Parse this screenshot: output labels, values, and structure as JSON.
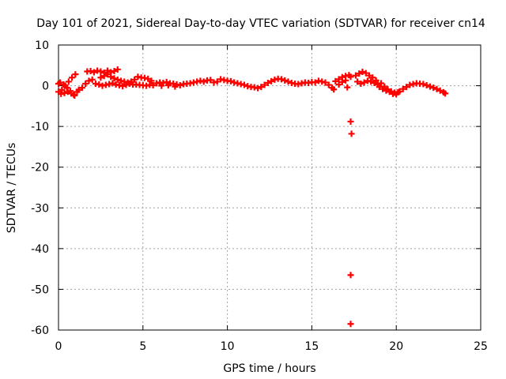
{
  "chart_data": {
    "type": "scatter",
    "title": "Day 101 of 2021, Sidereal Day-to-day VTEC variation (SDTVAR) for receiver cn14",
    "xlabel": "GPS time / hours",
    "ylabel": "SDTVAR / TECUs",
    "xlim": [
      0,
      25
    ],
    "ylim": [
      -60,
      10
    ],
    "xticks": [
      0,
      5,
      10,
      15,
      20,
      25
    ],
    "yticks": [
      10,
      0,
      -10,
      -20,
      -30,
      -40,
      -50,
      -60
    ],
    "grid": true,
    "marker": "+",
    "color": "#ff0000",
    "series": [
      {
        "name": "SDTVAR",
        "points": [
          [
            0.0,
            -1.5
          ],
          [
            0.2,
            -1.0
          ],
          [
            0.4,
            0.0
          ],
          [
            0.6,
            1.0
          ],
          [
            0.8,
            2.0
          ],
          [
            1.0,
            2.8
          ],
          [
            0.1,
            0.8
          ],
          [
            0.3,
            0.3
          ],
          [
            0.5,
            -0.5
          ],
          [
            0.7,
            -1.3
          ],
          [
            0.9,
            -2.2
          ],
          [
            1.1,
            -1.5
          ],
          [
            0.0,
            0.5
          ],
          [
            0.15,
            -2.0
          ],
          [
            0.35,
            -1.8
          ],
          [
            0.55,
            -1.5
          ],
          [
            0.75,
            -1.9
          ],
          [
            0.95,
            -2.4
          ],
          [
            1.2,
            -1.0
          ],
          [
            1.4,
            -0.5
          ],
          [
            1.6,
            0.5
          ],
          [
            1.8,
            1.2
          ],
          [
            2.0,
            1.5
          ],
          [
            1.7,
            3.5
          ],
          [
            1.9,
            3.6
          ],
          [
            2.1,
            3.3
          ],
          [
            2.3,
            3.7
          ],
          [
            2.5,
            3.5
          ],
          [
            2.7,
            3.2
          ],
          [
            2.9,
            3.7
          ],
          [
            3.1,
            3.3
          ],
          [
            3.3,
            3.6
          ],
          [
            3.5,
            4.0
          ],
          [
            2.2,
            0.5
          ],
          [
            2.4,
            0.3
          ],
          [
            2.6,
            0.0
          ],
          [
            2.8,
            0.2
          ],
          [
            3.0,
            0.4
          ],
          [
            3.2,
            0.6
          ],
          [
            2.5,
            2.0
          ],
          [
            2.7,
            2.4
          ],
          [
            2.9,
            2.8
          ],
          [
            3.1,
            2.2
          ],
          [
            3.3,
            1.8
          ],
          [
            3.5,
            1.5
          ],
          [
            3.7,
            1.2
          ],
          [
            3.9,
            1.0
          ],
          [
            3.4,
            0.3
          ],
          [
            3.6,
            0.1
          ],
          [
            3.8,
            -0.1
          ],
          [
            4.0,
            0.2
          ],
          [
            4.2,
            0.5
          ],
          [
            4.4,
            0.3
          ],
          [
            4.1,
            0.8
          ],
          [
            4.3,
            1.0
          ],
          [
            4.5,
            1.5
          ],
          [
            4.7,
            2.2
          ],
          [
            4.9,
            2.0
          ],
          [
            5.1,
            1.9
          ],
          [
            5.3,
            1.7
          ],
          [
            5.5,
            1.2
          ],
          [
            4.6,
            0.3
          ],
          [
            4.8,
            0.2
          ],
          [
            5.0,
            0.1
          ],
          [
            5.2,
            0.0
          ],
          [
            5.4,
            0.2
          ],
          [
            5.6,
            0.1
          ],
          [
            5.8,
            0.6
          ],
          [
            6.0,
            0.8
          ],
          [
            6.2,
            0.7
          ],
          [
            6.4,
            0.9
          ],
          [
            6.6,
            0.6
          ],
          [
            6.8,
            0.5
          ],
          [
            7.0,
            0.3
          ],
          [
            6.1,
            0.0
          ],
          [
            6.5,
            0.1
          ],
          [
            6.9,
            -0.2
          ],
          [
            7.2,
            0.1
          ],
          [
            7.4,
            0.4
          ],
          [
            7.6,
            0.5
          ],
          [
            7.8,
            0.6
          ],
          [
            8.0,
            0.8
          ],
          [
            8.2,
            1.0
          ],
          [
            8.4,
            1.2
          ],
          [
            8.6,
            1.0
          ],
          [
            8.8,
            1.3
          ],
          [
            9.0,
            1.4
          ],
          [
            9.2,
            0.8
          ],
          [
            9.4,
            1.0
          ],
          [
            9.6,
            1.6
          ],
          [
            9.8,
            1.4
          ],
          [
            10.0,
            1.2
          ],
          [
            10.2,
            1.1
          ],
          [
            10.4,
            0.8
          ],
          [
            10.6,
            0.6
          ],
          [
            10.8,
            0.4
          ],
          [
            11.0,
            0.2
          ],
          [
            11.2,
            -0.1
          ],
          [
            11.4,
            -0.3
          ],
          [
            11.6,
            -0.4
          ],
          [
            11.8,
            -0.6
          ],
          [
            12.0,
            -0.3
          ],
          [
            12.2,
            0.2
          ],
          [
            12.4,
            0.7
          ],
          [
            12.6,
            1.1
          ],
          [
            12.8,
            1.5
          ],
          [
            13.0,
            1.7
          ],
          [
            13.2,
            1.6
          ],
          [
            13.4,
            1.3
          ],
          [
            13.6,
            1.0
          ],
          [
            13.8,
            0.7
          ],
          [
            14.0,
            0.5
          ],
          [
            14.2,
            0.4
          ],
          [
            14.4,
            0.6
          ],
          [
            14.6,
            0.8
          ],
          [
            14.8,
            0.7
          ],
          [
            15.0,
            0.9
          ],
          [
            15.2,
            0.8
          ],
          [
            15.4,
            1.2
          ],
          [
            15.6,
            1.0
          ],
          [
            15.8,
            0.8
          ],
          [
            16.0,
            0.2
          ],
          [
            16.2,
            -0.5
          ],
          [
            16.3,
            -0.9
          ],
          [
            16.4,
            1.1
          ],
          [
            16.6,
            1.6
          ],
          [
            16.8,
            2.1
          ],
          [
            17.0,
            2.4
          ],
          [
            17.2,
            2.6
          ],
          [
            17.3,
            2.2
          ],
          [
            16.6,
            0.3
          ],
          [
            16.8,
            0.9
          ],
          [
            17.0,
            1.3
          ],
          [
            17.1,
            -0.4
          ],
          [
            17.3,
            -8.8
          ],
          [
            17.35,
            -11.8
          ],
          [
            17.3,
            -46.5
          ],
          [
            17.3,
            -58.5
          ],
          [
            17.6,
            2.5
          ],
          [
            17.8,
            3.0
          ],
          [
            18.0,
            3.4
          ],
          [
            18.2,
            3.1
          ],
          [
            18.4,
            2.5
          ],
          [
            18.6,
            2.0
          ],
          [
            18.8,
            1.3
          ],
          [
            17.7,
            1.0
          ],
          [
            17.9,
            0.5
          ],
          [
            18.1,
            0.8
          ],
          [
            18.3,
            1.2
          ],
          [
            18.5,
            1.0
          ],
          [
            18.7,
            0.7
          ],
          [
            18.9,
            0.3
          ],
          [
            19.1,
            0.6
          ],
          [
            19.3,
            -0.2
          ],
          [
            19.5,
            -0.9
          ],
          [
            19.7,
            -1.4
          ],
          [
            19.9,
            -1.7
          ],
          [
            20.1,
            -1.6
          ],
          [
            19.0,
            -0.3
          ],
          [
            19.2,
            -0.8
          ],
          [
            19.4,
            -1.2
          ],
          [
            19.6,
            -1.5
          ],
          [
            19.8,
            -2.0
          ],
          [
            20.0,
            -2.1
          ],
          [
            20.2,
            -1.4
          ],
          [
            20.4,
            -0.8
          ],
          [
            20.6,
            -0.3
          ],
          [
            20.8,
            0.2
          ],
          [
            21.0,
            0.4
          ],
          [
            21.2,
            0.6
          ],
          [
            21.4,
            0.5
          ],
          [
            21.6,
            0.4
          ],
          [
            21.8,
            0.1
          ],
          [
            22.0,
            -0.2
          ],
          [
            22.2,
            -0.5
          ],
          [
            22.4,
            -0.8
          ],
          [
            22.6,
            -1.2
          ],
          [
            22.8,
            -1.6
          ],
          [
            22.9,
            -1.9
          ]
        ]
      }
    ]
  }
}
